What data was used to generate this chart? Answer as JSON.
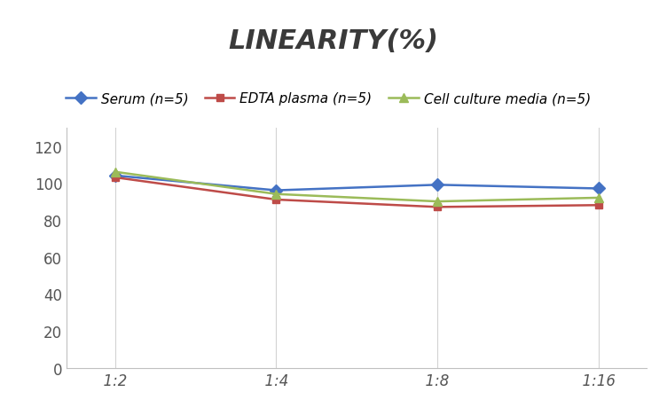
{
  "title": "LINEARITY(%)",
  "x_labels": [
    "1:2",
    "1:4",
    "1:8",
    "1:16"
  ],
  "x_positions": [
    0,
    1,
    2,
    3
  ],
  "series": [
    {
      "label": "Serum (n=5)",
      "values": [
        104,
        96,
        99,
        97
      ],
      "color": "#4472C4",
      "marker": "D",
      "marker_size": 7,
      "linewidth": 1.8
    },
    {
      "label": "EDTA plasma (n=5)",
      "values": [
        103,
        91,
        87,
        88
      ],
      "color": "#BE4B48",
      "marker": "s",
      "marker_size": 6,
      "linewidth": 1.8
    },
    {
      "label": "Cell culture media (n=5)",
      "values": [
        106,
        94,
        90,
        92
      ],
      "color": "#9BBB59",
      "marker": "^",
      "marker_size": 7,
      "linewidth": 1.8
    }
  ],
  "ylim": [
    0,
    130
  ],
  "yticks": [
    0,
    20,
    40,
    60,
    80,
    100,
    120
  ],
  "background_color": "#ffffff",
  "grid_color": "#d3d3d3",
  "title_fontsize": 22,
  "title_color": "#3a3a3a",
  "tick_fontsize": 12,
  "legend_fontsize": 11
}
